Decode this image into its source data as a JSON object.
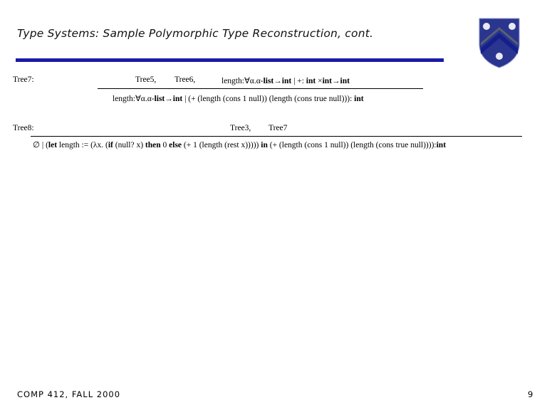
{
  "title": "Type Systems: Sample Polymorphic Type Reconstruction, cont.",
  "colors": {
    "bar": "#1a1aa8",
    "crest": "#1e2a8c"
  },
  "crest_icon": "rice-university-shield",
  "tree7": {
    "label": "Tree7:",
    "premises": [
      {
        "text": "Tree5,",
        "bold": false
      },
      {
        "text": "Tree6,",
        "bold": false
      }
    ],
    "premise3": [
      {
        "text": "length:∀α.α-",
        "bold": false
      },
      {
        "text": "list",
        "bold": true
      },
      {
        "text": "→",
        "bold": false
      },
      {
        "text": "int",
        "bold": true
      },
      {
        "text": " | +: ",
        "bold": false
      },
      {
        "text": "int",
        "bold": true
      },
      {
        "text": " ×",
        "bold": false
      },
      {
        "text": "int",
        "bold": true
      },
      {
        "text": "→",
        "bold": false
      },
      {
        "text": "int",
        "bold": true
      }
    ],
    "conclusion": [
      {
        "text": "length:∀α.α-",
        "bold": false
      },
      {
        "text": "list",
        "bold": true
      },
      {
        "text": "→",
        "bold": false
      },
      {
        "text": "int",
        "bold": true
      },
      {
        "text": " | (+ (length (cons 1 null)) (length (cons true null))): ",
        "bold": false
      },
      {
        "text": "int",
        "bold": true
      }
    ]
  },
  "tree8": {
    "label": "Tree8:",
    "premises": [
      {
        "text": "Tree3,",
        "bold": false
      },
      {
        "text": "Tree7",
        "bold": false
      }
    ],
    "conclusion": [
      {
        "text": "∅ | (",
        "bold": false
      },
      {
        "text": "let",
        "bold": true
      },
      {
        "text": " length := (λx. (",
        "bold": false
      },
      {
        "text": "if",
        "bold": true
      },
      {
        "text": " (null? x) ",
        "bold": false
      },
      {
        "text": "then",
        "bold": true
      },
      {
        "text": " 0 ",
        "bold": false
      },
      {
        "text": "else",
        "bold": true
      },
      {
        "text": " (+ 1 (length (rest x))))) ",
        "bold": false
      },
      {
        "text": "in",
        "bold": true
      },
      {
        "text": " (+ (length (cons 1 null)) (length (cons true null)))):",
        "bold": false
      },
      {
        "text": "int",
        "bold": true
      }
    ]
  },
  "footer": "COMP 412, FALL 2000",
  "page_number": "9"
}
